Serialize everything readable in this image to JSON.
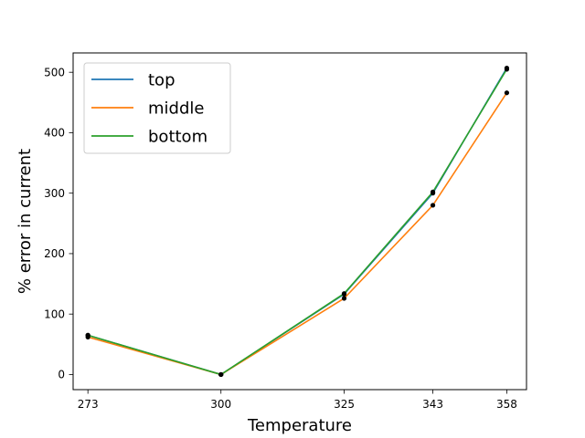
{
  "chart_data": {
    "type": "line",
    "title": "",
    "xlabel": "Temperature",
    "ylabel": "% error in current",
    "x": [
      273,
      300,
      325,
      343,
      358
    ],
    "xticks": [
      "273",
      "300",
      "325",
      "343",
      "358"
    ],
    "yticks": [
      0,
      100,
      200,
      300,
      400,
      500
    ],
    "xlim": [
      270,
      362
    ],
    "ylim": [
      -25,
      532
    ],
    "grid": false,
    "legend_position": "top-left",
    "series": [
      {
        "name": "top",
        "color": "#1f77b4",
        "values": [
          65,
          0,
          133,
          300,
          507
        ]
      },
      {
        "name": "middle",
        "color": "#ff7f0e",
        "values": [
          62,
          0,
          126,
          280,
          466
        ]
      },
      {
        "name": "bottom",
        "color": "#2ca02c",
        "values": [
          65,
          0,
          134,
          302,
          505
        ]
      }
    ],
    "marker_color": "#000000"
  }
}
